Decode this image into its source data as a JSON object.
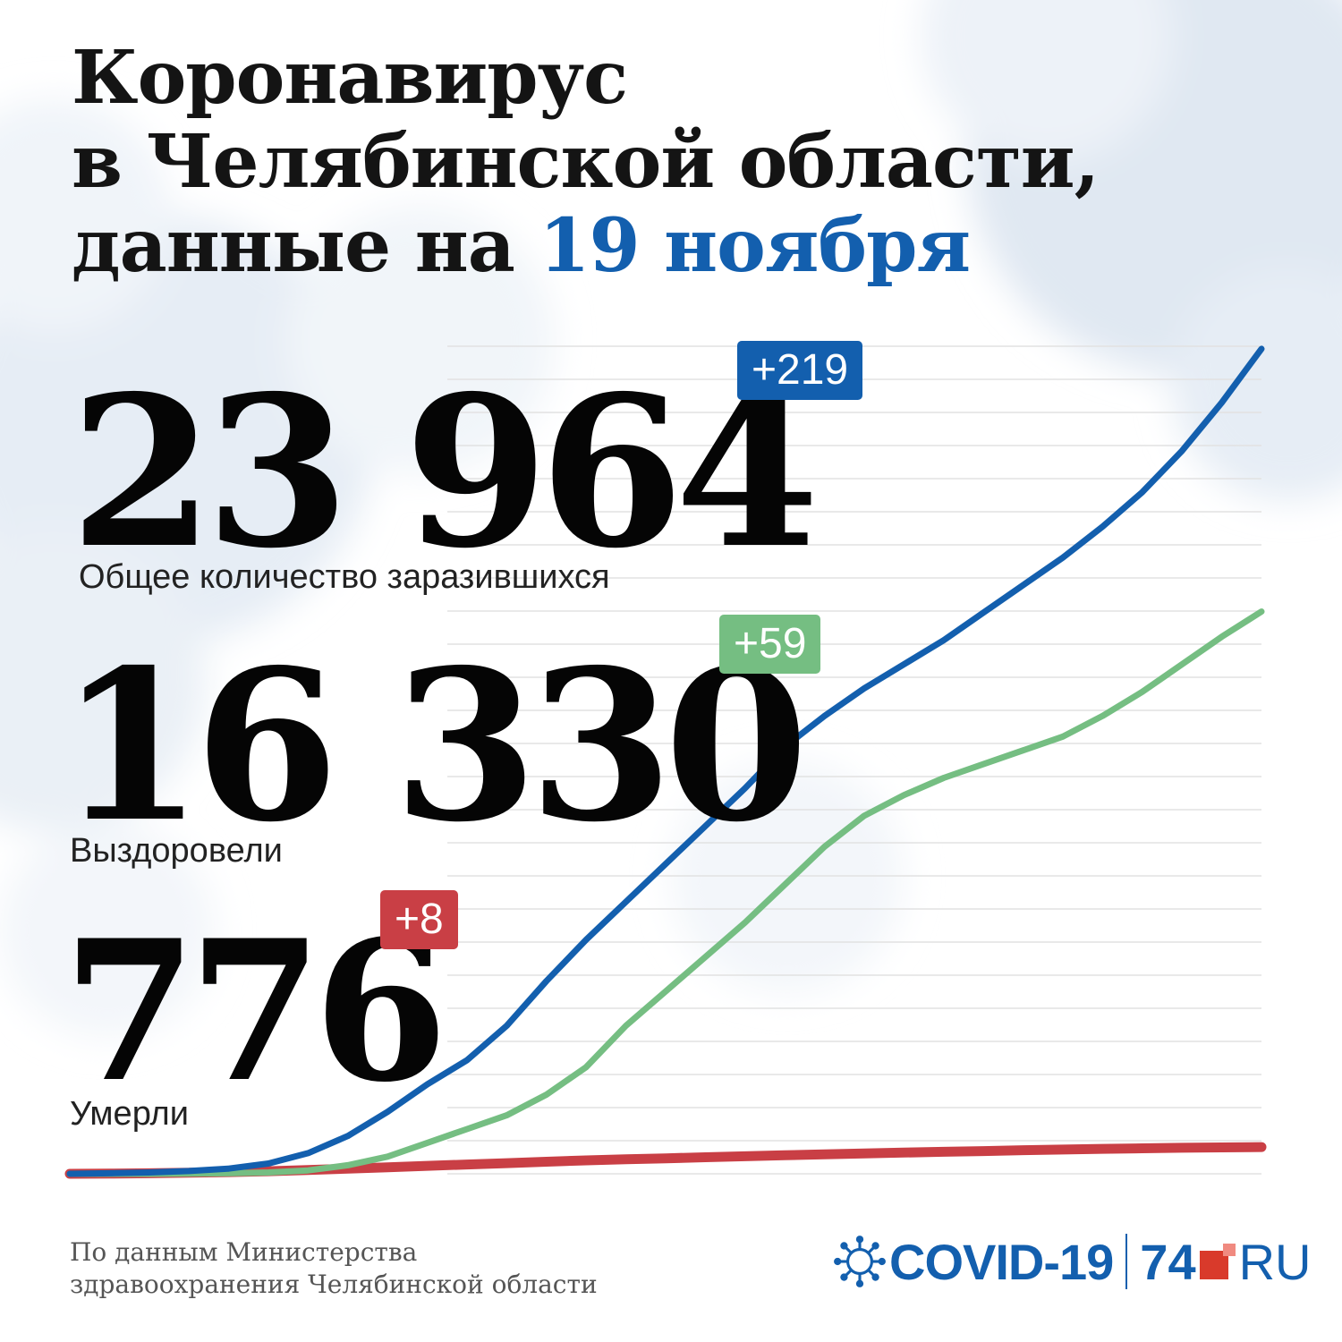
{
  "title": {
    "line1": "Коронавирус",
    "line2": "в Челябинской области,",
    "line3_prefix": "данные на",
    "line3_date": "19 ноября"
  },
  "stats": {
    "cases": {
      "value": "23 964",
      "delta": "+219",
      "label": "Общее количество заразившихся"
    },
    "recovered": {
      "value": "16 330",
      "delta": "+59",
      "label": "Выздоровели"
    },
    "deaths": {
      "value": "776",
      "delta": "+8",
      "label": "Умерли"
    }
  },
  "source": {
    "line1": "По данным Министерства",
    "line2": "здравоохранения Челябинской области"
  },
  "logo": {
    "covid": "COVID-19",
    "site_number": "74",
    "site_tld": "RU"
  },
  "colors": {
    "cases": "#135fae",
    "recovered": "#75be82",
    "deaths": "#c93f45",
    "title_accent": "#135fae"
  },
  "chart_data": {
    "type": "line",
    "title": "",
    "xlabel": "",
    "ylabel": "",
    "ylim": [
      0,
      25000
    ],
    "grid": true,
    "series": [
      {
        "key": "cases",
        "values": [
          0,
          15,
          40,
          80,
          150,
          300,
          600,
          1100,
          1800,
          2600,
          3300,
          4300,
          5600,
          6800,
          7900,
          9000,
          10100,
          11200,
          12400,
          13300,
          14100,
          14800,
          15500,
          16300,
          17100,
          17900,
          18800,
          19800,
          21000,
          22400,
          23964
        ]
      },
      {
        "key": "recovered",
        "values": [
          0,
          0,
          0,
          5,
          15,
          40,
          100,
          250,
          500,
          900,
          1300,
          1700,
          2300,
          3100,
          4300,
          5300,
          6300,
          7300,
          8400,
          9500,
          10400,
          11000,
          11500,
          11900,
          12300,
          12700,
          13300,
          14000,
          14800,
          15600,
          16330
        ]
      },
      {
        "key": "deaths",
        "values": [
          0,
          5,
          15,
          30,
          50,
          75,
          110,
          150,
          190,
          230,
          270,
          310,
          350,
          390,
          420,
          450,
          480,
          510,
          540,
          565,
          590,
          615,
          640,
          660,
          685,
          705,
          725,
          740,
          755,
          766,
          776
        ]
      }
    ]
  }
}
